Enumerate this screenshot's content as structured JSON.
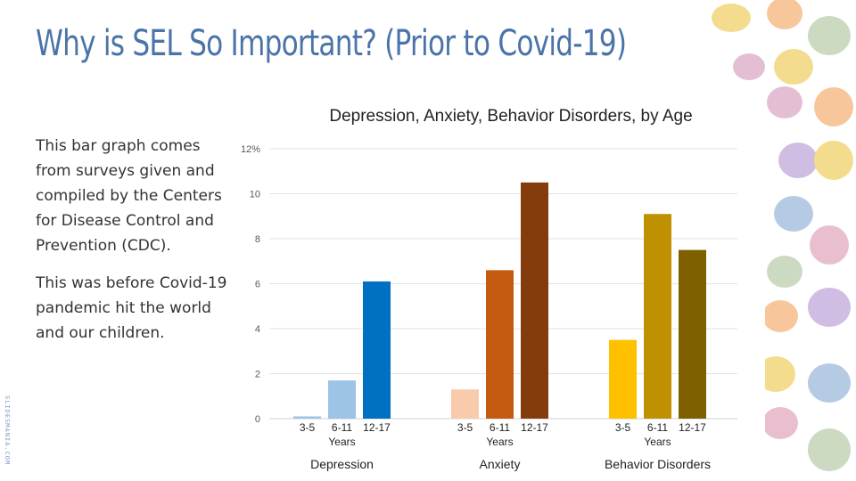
{
  "slide": {
    "title": "Why is SEL So Important? (Prior to Covid-19)",
    "paragraphs": [
      "This bar graph comes from surveys given and compiled by the Centers for Disease Control and Prevention (CDC).",
      "This was before Covid-19 pandemic hit the world and our children."
    ],
    "credit": "SLIDESMANIA.COM"
  },
  "chart_data": {
    "type": "bar",
    "title": "Depression, Anxiety, Behavior Disorders, by Age",
    "xlabel": "",
    "ylabel": "",
    "ylim": [
      0,
      12
    ],
    "yticks": [
      0,
      2,
      4,
      6,
      8,
      10,
      12
    ],
    "ytick_labels": [
      "0",
      "2",
      "4",
      "6",
      "8",
      "10",
      "12%"
    ],
    "grid": true,
    "legend": "none",
    "sub_axis_label": "Years",
    "groups": [
      {
        "name": "Depression",
        "categories": [
          "3-5",
          "6-11",
          "12-17"
        ],
        "values": [
          0.1,
          1.7,
          6.1
        ],
        "colors": [
          "#9dc3e6",
          "#9dc3e6",
          "#0070c0"
        ]
      },
      {
        "name": "Anxiety",
        "categories": [
          "3-5",
          "6-11",
          "12-17"
        ],
        "values": [
          1.3,
          6.6,
          10.5
        ],
        "colors": [
          "#f8cbad",
          "#c55a11",
          "#843c0c"
        ]
      },
      {
        "name": "Behavior Disorders",
        "categories": [
          "3-5",
          "6-11",
          "12-17"
        ],
        "values": [
          3.5,
          9.1,
          7.5
        ],
        "colors": [
          "#ffc000",
          "#bf9000",
          "#7f6000"
        ]
      }
    ]
  }
}
